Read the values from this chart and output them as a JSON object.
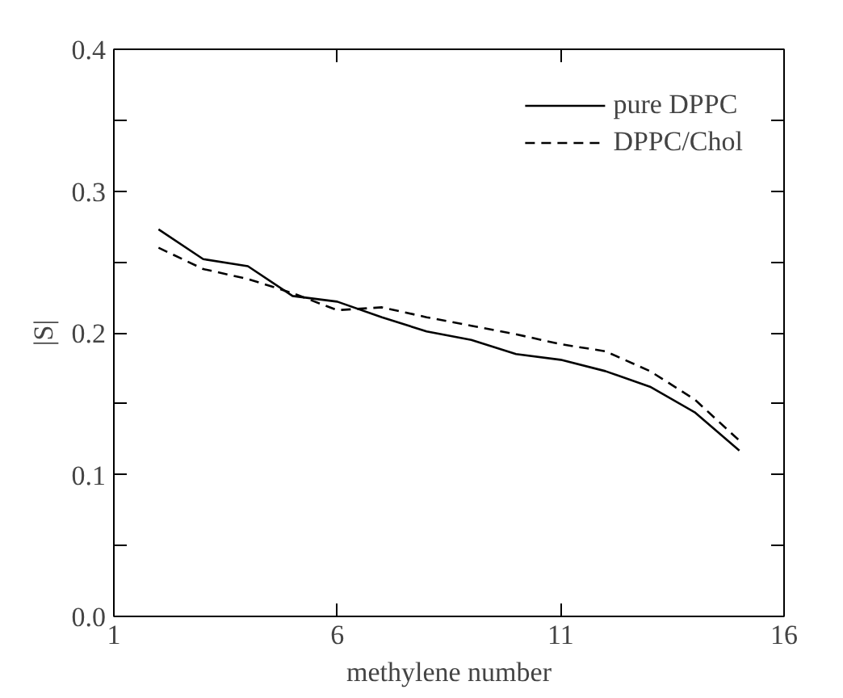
{
  "chart_data": {
    "type": "line",
    "xlabel": "methylene number",
    "ylabel": "|S|",
    "x": [
      2,
      3,
      4,
      5,
      6,
      7,
      8,
      9,
      10,
      11,
      12,
      13,
      14,
      15
    ],
    "series": [
      {
        "name": "pure DPPC",
        "color": "#000000",
        "line_style": "solid",
        "values": [
          0.273,
          0.252,
          0.247,
          0.226,
          0.222,
          0.211,
          0.201,
          0.195,
          0.185,
          0.181,
          0.173,
          0.162,
          0.144,
          0.117
        ]
      },
      {
        "name": "DPPC/Chol",
        "color": "#000000",
        "line_style": "dashed",
        "values": [
          0.26,
          0.245,
          0.238,
          0.228,
          0.216,
          0.218,
          0.211,
          0.205,
          0.199,
          0.192,
          0.187,
          0.173,
          0.153,
          0.124
        ]
      }
    ],
    "xlim": [
      1,
      16
    ],
    "xticks": [
      1,
      6,
      11,
      16
    ],
    "ylim": [
      0,
      0.4
    ],
    "yticks": [
      {
        "value": 0,
        "label": "0.0"
      },
      {
        "value": 0.05,
        "label": null
      },
      {
        "value": 0.1,
        "label": "0.1"
      },
      {
        "value": 0.15,
        "label": null
      },
      {
        "value": 0.2,
        "label": "0.2"
      },
      {
        "value": 0.25,
        "label": null
      },
      {
        "value": 0.3,
        "label": "0.3"
      },
      {
        "value": 0.35,
        "label": null
      },
      {
        "value": 0.4,
        "label": "0.4"
      }
    ],
    "grid": false,
    "legend": "top right",
    "marker": "none"
  }
}
